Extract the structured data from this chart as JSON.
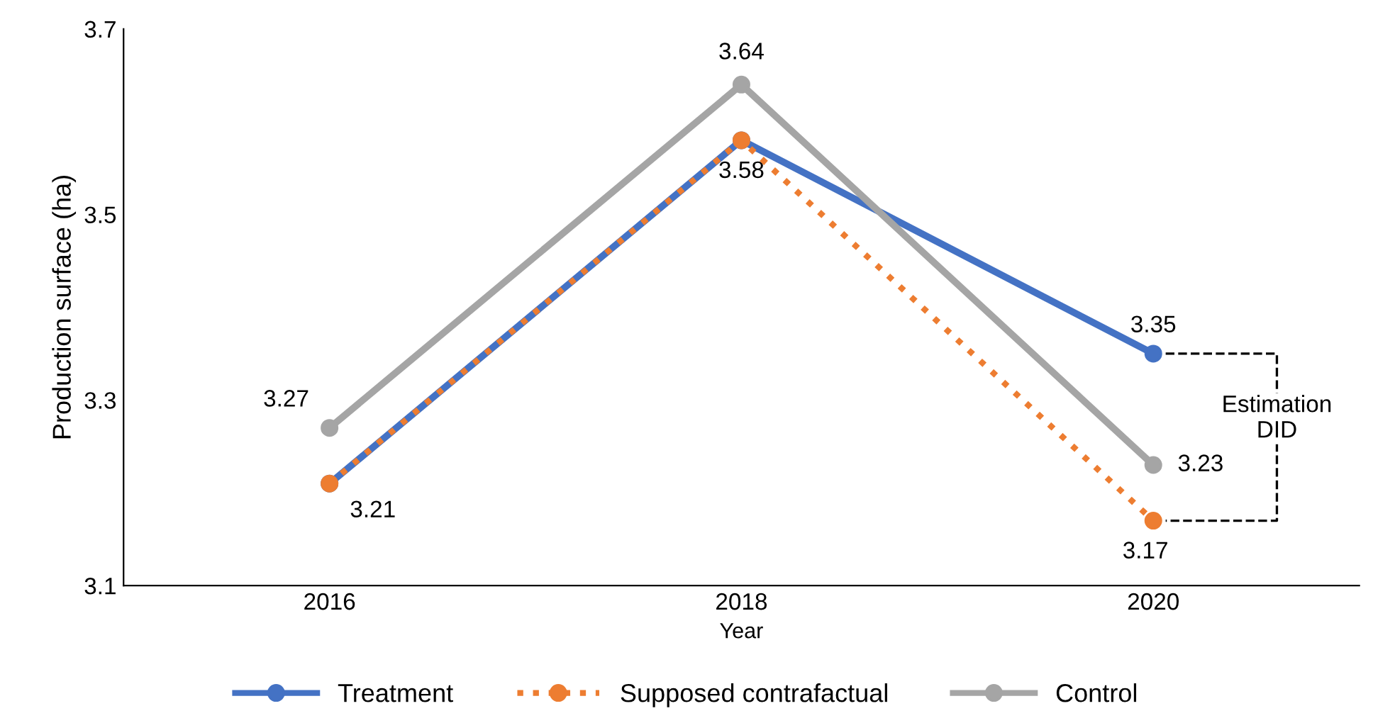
{
  "chart_data": {
    "type": "line",
    "xlabel": "Year",
    "ylabel": "Production surface (ha)",
    "categories": [
      "2016",
      "2018",
      "2020"
    ],
    "series": [
      {
        "name": "Treatment",
        "color": "#4472c4",
        "values": [
          3.21,
          3.58,
          3.35
        ],
        "value_labels": [
          null,
          "3.58",
          "3.35"
        ],
        "line_style": "solid"
      },
      {
        "name": "Supposed contrafactual",
        "color": "#ed7d31",
        "values": [
          3.21,
          3.58,
          3.17
        ],
        "value_labels": [
          "3.21",
          null,
          "3.17"
        ],
        "line_style": "dotted"
      },
      {
        "name": "Control",
        "color": "#a5a5a5",
        "values": [
          3.27,
          3.64,
          3.23
        ],
        "value_labels": [
          "3.27",
          "3.64",
          "3.23"
        ],
        "line_style": "solid"
      }
    ],
    "ylim": [
      3.1,
      3.7
    ],
    "yticks": [
      3.1,
      3.3,
      3.5,
      3.7
    ],
    "grid": false,
    "legend": "bottom",
    "marker": "circle",
    "annotations": [
      "Estimation\nDID"
    ]
  }
}
